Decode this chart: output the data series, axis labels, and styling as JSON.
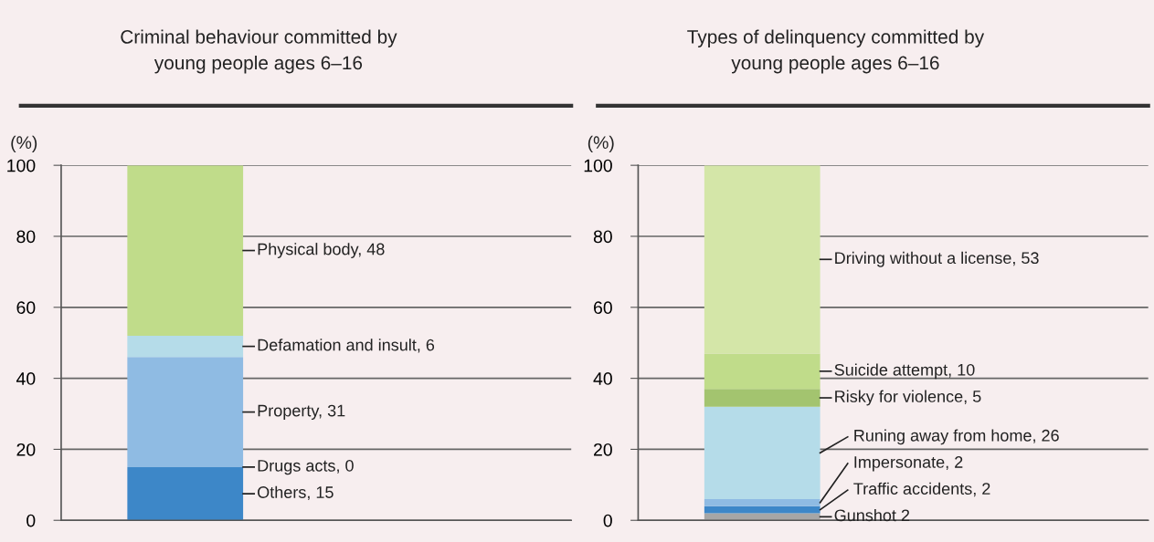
{
  "chart_data": [
    {
      "type": "bar",
      "title": "Criminal behaviour committed by\nyoung people ages 6–16",
      "ylabel": "(%)",
      "categories": [
        null
      ],
      "stacked": true,
      "ylim": [
        0,
        100
      ],
      "yticks": [
        0,
        20,
        40,
        60,
        80,
        100
      ],
      "grid": "y",
      "tick_labels": "y",
      "series": [
        {
          "color": "#3d87c8",
          "values": [
            15
          ],
          "value_labels": [
            "Others, 15"
          ]
        },
        {
          "color": "#3d87c8",
          "values": [
            0
          ],
          "value_labels": [
            "Drugs acts, 0"
          ]
        },
        {
          "color": "#8fbbe3",
          "values": [
            31
          ],
          "value_labels": [
            "Property, 31"
          ]
        },
        {
          "color": "#b5dce9",
          "values": [
            6
          ],
          "value_labels": [
            "Defamation and insult, 6"
          ]
        },
        {
          "color": "#c0dc8a",
          "values": [
            48
          ],
          "value_labels": [
            "Physical body, 48"
          ]
        }
      ]
    },
    {
      "type": "bar",
      "title": "Types of delinquency committed by\nyoung people ages 6–16",
      "ylabel": "(%)",
      "categories": [
        null
      ],
      "stacked": true,
      "ylim": [
        0,
        100
      ],
      "yticks": [
        0,
        20,
        40,
        60,
        80,
        100
      ],
      "grid": "y",
      "tick_labels": "y",
      "series": [
        {
          "color": "#a6a6a6",
          "values": [
            2
          ],
          "value_labels": [
            "Gunshot 2"
          ]
        },
        {
          "color": "#3d87c8",
          "values": [
            2
          ],
          "value_labels": [
            "Traffic accidents, 2"
          ]
        },
        {
          "color": "#8fbbe3",
          "values": [
            2
          ],
          "value_labels": [
            "Impersonate, 2"
          ]
        },
        {
          "color": "#b5dce9",
          "values": [
            26
          ],
          "value_labels": [
            "Runing away from home, 26"
          ]
        },
        {
          "color": "#a3c46f",
          "values": [
            5
          ],
          "value_labels": [
            "Risky for violence, 5"
          ]
        },
        {
          "color": "#c0dc8a",
          "values": [
            10
          ],
          "value_labels": [
            "Suicide attempt, 10"
          ]
        },
        {
          "color": "#d4e6a8",
          "values": [
            53
          ],
          "value_labels": [
            "Driving without a license, 53"
          ]
        }
      ]
    }
  ]
}
